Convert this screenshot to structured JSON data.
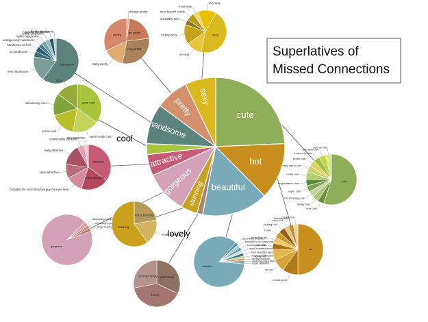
{
  "chart_data": {
    "type": "pie",
    "title_lines": [
      "Superlatives of",
      "Missed Connections"
    ],
    "main": {
      "slices": [
        {
          "label": "cute",
          "value": 22,
          "color": "#8fae5a",
          "tc": "#ffffff"
        },
        {
          "label": "hot",
          "value": 12,
          "color": "#c98f1e",
          "tc": "#ffffff"
        },
        {
          "label": "beautiful",
          "value": 14,
          "color": "#79aab8",
          "tc": "#ffffff"
        },
        {
          "label": "lovely",
          "value": 1.2,
          "color": "#a3866f",
          "tc": "#000000"
        },
        {
          "label": "stunning",
          "value": 3.5,
          "color": "#c9a11c",
          "tc": "#ffffff"
        },
        {
          "label": "gorgeous",
          "value": 9,
          "color": "#d3a2b9",
          "tc": "#ffffff"
        },
        {
          "label": "attractive",
          "value": 4.5,
          "color": "#c65b76",
          "tc": "#ffffff"
        },
        {
          "label": "cool",
          "value": 2.3,
          "color": "#a8c43a",
          "tc": "#000000"
        },
        {
          "label": "handsome",
          "value": 8.5,
          "color": "#5d847c",
          "tc": "#ffffff"
        },
        {
          "label": "pretty",
          "value": 7,
          "color": "#d48f6c",
          "tc": "#ffffff"
        },
        {
          "label": "sexy",
          "value": 6.5,
          "color": "#d9b91e",
          "tc": "#ffffff"
        }
      ]
    },
    "satellites": [
      {
        "key": "pretty",
        "slices": [
          {
            "label": "always pretty",
            "value": 2,
            "color": "#e5b49a"
          },
          {
            "label": "so pretty",
            "value": 21,
            "color": "#c77a58"
          },
          {
            "label": "very pretty",
            "value": 30,
            "color": "#a9825a"
          },
          {
            "label": "really pretty",
            "value": 15,
            "color": "#dfab6f"
          },
          {
            "label": "pretty",
            "value": 32,
            "color": "#d6876a"
          }
        ]
      },
      {
        "key": "sexy",
        "slices": [
          {
            "label": "sexy",
            "value": 45,
            "color": "#d9b91e"
          },
          {
            "label": "so sexy",
            "value": 12,
            "color": "#e8c63a"
          },
          {
            "label": "fucking sexy",
            "value": 15,
            "color": "#c4a21a"
          },
          {
            "label": "irresistibly sexy",
            "value": 4,
            "color": "#8a7a18"
          },
          {
            "label": "sexy beyond words",
            "value": 6,
            "color": "#b49a1c"
          },
          {
            "label": "most sexy",
            "value": 4,
            "color": "#f0d86a"
          },
          {
            "label": "very sexy",
            "value": 14,
            "color": "#e8c000"
          }
        ]
      },
      {
        "key": "handsome",
        "slices": [
          {
            "label": "handsome",
            "value": 60,
            "color": "#5d847c"
          },
          {
            "label": "very handsome",
            "value": 18,
            "color": "#7c9e96"
          },
          {
            "label": "so handsome",
            "value": 4,
            "color": "#3f6a74"
          },
          {
            "label": "handsome as hell",
            "value": 4,
            "color": "#2f5f7a"
          },
          {
            "label": "outrageously handsome",
            "value": 3,
            "color": "#4a7d89"
          },
          {
            "label": "rather handsome",
            "value": 3,
            "color": "#6ea1ad"
          },
          {
            "label": "really handsome",
            "value": 3,
            "color": "#8bb9c4"
          },
          {
            "label": "ruggedly handsome",
            "value": 3,
            "color": "#2d5560"
          },
          {
            "label": "lovely handsome",
            "value": 2,
            "color": "#a9cfd8"
          }
        ]
      },
      {
        "key": "cool",
        "slices": [
          {
            "label": "seem cool",
            "value": 35,
            "color": "#a8c43a"
          },
          {
            "label": "seem really cool",
            "value": 18,
            "color": "#c2d45a"
          },
          {
            "label": "soooo cool",
            "value": 17,
            "color": "#b9bf2a"
          },
          {
            "label": "ridiculously cool",
            "value": 15,
            "color": "#7fa43a"
          },
          {
            "label": "other",
            "value": 15,
            "color": "#94ab38"
          }
        ]
      },
      {
        "key": "attractive",
        "slices": [
          {
            "label": "attractive",
            "value": 35,
            "color": "#c65b76"
          },
          {
            "label": "extremely attractive",
            "value": 20,
            "color": "#b74860"
          },
          {
            "label": "probably the most attractive guy i've ever seen",
            "value": 12,
            "color": "#d48ba0"
          },
          {
            "label": "quite attractive",
            "value": 10,
            "color": "#b86c78"
          },
          {
            "label": "really attractive",
            "value": 15,
            "color": "#a94f66"
          },
          {
            "label": "unbelievably attractive",
            "value": 5,
            "color": "#e8a0b4"
          },
          {
            "label": "very attractive",
            "value": 3,
            "color": "#f0c4d0"
          }
        ]
      },
      {
        "key": "gorgeous",
        "slices": [
          {
            "label": "gorgeous",
            "value": 93,
            "color": "#d3a2b9"
          },
          {
            "label": "absolutely gorgeous",
            "value": 3,
            "color": "#e0a098"
          },
          {
            "label": "amazingly gorgeous",
            "value": 2,
            "color": "#c9897e"
          },
          {
            "label": "drop dead gorgeous",
            "value": 2,
            "color": "#b6786f"
          }
        ]
      },
      {
        "key": "stunning",
        "slices": [
          {
            "label": "absolutely stunning",
            "value": 22,
            "color": "#b59a5a"
          },
          {
            "label": "really stunning",
            "value": 18,
            "color": "#d4b35c"
          },
          {
            "label": "stunning",
            "value": 60,
            "color": "#c9a11c"
          }
        ]
      },
      {
        "key": "lovely",
        "slices": [
          {
            "label": "quite lovely",
            "value": 32,
            "color": "#8f7162"
          },
          {
            "label": "lovely",
            "value": 40,
            "color": "#a3766f"
          },
          {
            "label": "seemed lovely",
            "value": 28,
            "color": "#b3938c"
          }
        ]
      },
      {
        "key": "beautiful",
        "slices": [
          {
            "label": "beautiful",
            "value": 85,
            "color": "#79aab8"
          },
          {
            "label": "absolutely beautiful",
            "value": 2,
            "color": "#4f8ea0"
          },
          {
            "label": "beautiful in so many ways",
            "value": 2,
            "color": "#a9cad4"
          },
          {
            "label": "fucking beautiful",
            "value": 2,
            "color": "#6f9fae"
          },
          {
            "label": "most beautiful woman",
            "value": 2,
            "color": "#c8dde3"
          },
          {
            "label": "most beautiful woman I've ever seen in my life",
            "value": 2,
            "color": "#3f7a8c"
          },
          {
            "label": "most beautiful person",
            "value": 1.5,
            "color": "#e0c070"
          },
          {
            "label": "simply beautiful",
            "value": 1.5,
            "color": "#b98f6f"
          },
          {
            "label": "amazingly beautiful",
            "value": 1,
            "color": "#8f8f8f"
          },
          {
            "label": "super beautiful",
            "value": 1,
            "color": "#5f9f8f"
          }
        ]
      },
      {
        "key": "hot",
        "slices": [
          {
            "label": "hot",
            "value": 50,
            "color": "#c98f1e"
          },
          {
            "label": "smoking hot",
            "value": 10,
            "color": "#b27a14"
          },
          {
            "label": "so hot",
            "value": 8,
            "color": "#dca23a"
          },
          {
            "label": "really hot",
            "value": 7,
            "color": "#e6b84a"
          },
          {
            "label": "cute hot",
            "value": 4,
            "color": "#a86f10"
          },
          {
            "label": "incredibly hot",
            "value": 4,
            "color": "#f0c860"
          },
          {
            "label": "hottie",
            "value": 4,
            "color": "#d09a2a"
          },
          {
            "label": "fucking hot",
            "value": 4,
            "color": "#8f6010"
          },
          {
            "label": "sexy hot",
            "value": 3,
            "color": "#e8c27a"
          },
          {
            "label": "insanely hot",
            "value": 3,
            "color": "#c48a36"
          },
          {
            "label": "fuckin hot",
            "value": 3,
            "color": "#f2d690"
          }
        ]
      },
      {
        "key": "cute",
        "slices": [
          {
            "label": "cute",
            "value": 55,
            "color": "#8fae5a"
          },
          {
            "label": "very cute",
            "value": 4,
            "color": "#6c8f3c"
          },
          {
            "label": "totally cute",
            "value": 4,
            "color": "#a8c478"
          },
          {
            "label": "too freaking cute",
            "value": 4,
            "color": "#c3d59a"
          },
          {
            "label": "super cute",
            "value": 4,
            "color": "#7fa450"
          },
          {
            "label": "so goddamn cute",
            "value": 4,
            "color": "#5f8a3a"
          },
          {
            "label": "really cute",
            "value": 5,
            "color": "#b5cf70"
          },
          {
            "label": "pretty damn cute",
            "value": 4,
            "color": "#d0d070"
          },
          {
            "label": "pretty cute",
            "value": 4,
            "color": "#e0d060"
          },
          {
            "label": "extremely cute",
            "value": 4,
            "color": "#a0c040"
          },
          {
            "label": "adorably cute",
            "value": 4,
            "color": "#c0d840"
          },
          {
            "label": "cute as hell",
            "value": 4,
            "color": "#d8e890"
          }
        ]
      }
    ]
  }
}
